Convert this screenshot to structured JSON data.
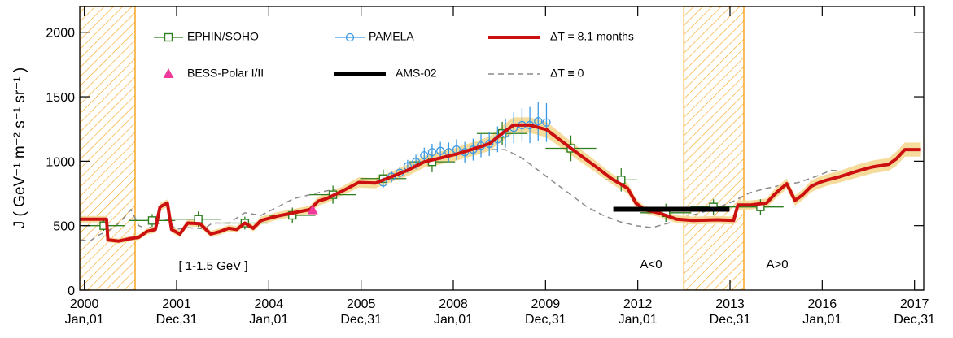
{
  "chart_data": {
    "type": "line",
    "ylabel": "J ( GeV⁻¹ m⁻² s⁻¹ sr⁻¹ )",
    "xlim": [
      1999.9,
      2018.2
    ],
    "ylim": [
      0,
      2200
    ],
    "xticks": [
      {
        "value": 2000,
        "label": [
          "2000",
          "Jan,01"
        ]
      },
      {
        "value": 2002,
        "label": [
          "2001",
          "Dec,31"
        ]
      },
      {
        "value": 2004,
        "label": [
          "2004",
          "Jan,01"
        ]
      },
      {
        "value": 2006,
        "label": [
          "2005",
          "Dec,31"
        ]
      },
      {
        "value": 2008,
        "label": [
          "2008",
          "Jan,01"
        ]
      },
      {
        "value": 2010,
        "label": [
          "2009",
          "Dec,31"
        ]
      },
      {
        "value": 2012,
        "label": [
          "2012",
          "Jan,01"
        ]
      },
      {
        "value": 2014,
        "label": [
          "2013",
          "Dec,31"
        ]
      },
      {
        "value": 2016,
        "label": [
          "2016",
          "Jan,01"
        ]
      },
      {
        "value": 2018,
        "label": [
          "2017",
          "Dec,31"
        ]
      }
    ],
    "yticks": [
      0,
      500,
      1000,
      1500,
      2000
    ],
    "shaded_regions": [
      [
        1999.9,
        2001.1
      ],
      [
        2013.0,
        2014.3
      ]
    ],
    "shaded_color": "#f7a623",
    "annotations": [
      "[ 1-1.5 GeV ]",
      "A<0",
      "A>0"
    ],
    "series": [
      {
        "name": "EPHIN/SOHO",
        "color": "#2e7d1e",
        "kind": "points",
        "marker": "square",
        "x": [
          2000.42,
          2001.47,
          2002.47,
          2003.48,
          2004.51,
          2005.39,
          2006.48,
          2007.54,
          2009.06,
          2010.55,
          2011.64,
          2012.61,
          2013.64,
          2014.66
        ],
        "values": [
          500,
          540,
          550,
          520,
          580,
          740,
          865,
          995,
          1215,
          1100,
          855,
          600,
          645,
          645
        ],
        "errors": [
          40,
          50,
          60,
          50,
          60,
          70,
          70,
          80,
          90,
          100,
          90,
          70,
          60,
          60
        ],
        "xerrors": [
          0.45,
          0.5,
          0.5,
          0.5,
          0.5,
          0.5,
          0.5,
          0.5,
          0.55,
          0.55,
          0.35,
          0.55,
          0.5,
          0.5
        ]
      },
      {
        "name": "PAMELA",
        "color": "#3a9ae6",
        "kind": "points",
        "marker": "circle",
        "x": [
          2006.48,
          2006.66,
          2006.84,
          2007.01,
          2007.19,
          2007.37,
          2007.54,
          2007.72,
          2007.9,
          2008.07,
          2008.25,
          2008.43,
          2008.6,
          2008.78,
          2008.96,
          2009.13,
          2009.31,
          2009.49,
          2009.66,
          2009.84,
          2010.02
        ],
        "values": [
          835,
          880,
          910,
          960,
          995,
          1045,
          1070,
          1080,
          1070,
          1090,
          1070,
          1090,
          1120,
          1135,
          1170,
          1215,
          1260,
          1280,
          1280,
          1310,
          1300
        ],
        "errors": [
          40,
          45,
          45,
          50,
          55,
          60,
          65,
          70,
          75,
          80,
          80,
          85,
          90,
          95,
          100,
          110,
          120,
          130,
          140,
          150,
          150
        ]
      },
      {
        "name": "ΔT = 8.1 months",
        "color": "#cc1010",
        "band_color": "#f6dc9c",
        "kind": "line",
        "x": [
          1999.91,
          2000.48,
          2000.51,
          2000.74,
          2001.01,
          2001.18,
          2001.36,
          2001.54,
          2001.64,
          2001.8,
          2001.89,
          2002.07,
          2002.24,
          2002.51,
          2002.74,
          2002.95,
          2003.13,
          2003.3,
          2003.48,
          2003.66,
          2003.83,
          2004.19,
          2004.54,
          2004.89,
          2005.07,
          2005.25,
          2005.6,
          2005.95,
          2006.31,
          2006.66,
          2007.01,
          2007.37,
          2007.72,
          2008.07,
          2008.43,
          2008.78,
          2009.13,
          2009.31,
          2009.66,
          2010.02,
          2010.37,
          2010.72,
          2011.08,
          2011.43,
          2011.78,
          2011.96,
          2012.14,
          2012.49,
          2012.84,
          2013.2,
          2013.73,
          2014.08,
          2014.17,
          2014.43,
          2014.79,
          2014.96,
          2015.05,
          2015.23,
          2015.41,
          2015.58,
          2015.76,
          2015.94,
          2016.11,
          2016.38,
          2016.73,
          2017.08,
          2017.44,
          2017.61,
          2017.79,
          2018.14
        ],
        "values": [
          550,
          550,
          390,
          380,
          400,
          410,
          455,
          470,
          645,
          675,
          470,
          435,
          520,
          515,
          435,
          455,
          480,
          470,
          520,
          480,
          540,
          575,
          600,
          625,
          690,
          710,
          770,
          835,
          830,
          880,
          930,
          995,
          1025,
          1055,
          1095,
          1135,
          1235,
          1280,
          1280,
          1245,
          1150,
          1055,
          960,
          865,
          790,
          675,
          625,
          595,
          550,
          540,
          545,
          540,
          660,
          660,
          675,
          740,
          770,
          825,
          695,
          740,
          805,
          835,
          855,
          880,
          920,
          955,
          975,
          1020,
          1090,
          1090
        ],
        "errors": [
          25,
          25,
          20,
          20,
          20,
          20,
          25,
          25,
          30,
          30,
          25,
          25,
          25,
          25,
          25,
          25,
          25,
          25,
          25,
          25,
          30,
          30,
          30,
          30,
          35,
          35,
          35,
          40,
          40,
          40,
          45,
          45,
          50,
          50,
          55,
          55,
          60,
          60,
          60,
          60,
          55,
          50,
          45,
          40,
          40,
          35,
          30,
          30,
          30,
          30,
          30,
          30,
          35,
          35,
          35,
          40,
          40,
          40,
          40,
          40,
          45,
          45,
          45,
          45,
          50,
          50,
          50,
          55,
          55,
          55
        ]
      },
      {
        "name": "BESS-Polar I/II",
        "color": "#f0399a",
        "kind": "points",
        "marker": "triangle",
        "x": [
          2004.95
        ],
        "values": [
          620
        ]
      },
      {
        "name": "AMS-02",
        "color": "#000000",
        "kind": "segment",
        "x": [
          2011.47,
          2013.99
        ],
        "values": [
          627,
          627
        ]
      },
      {
        "name": "ΔT ≡ 0",
        "color": "#8a8a8a",
        "kind": "dashed",
        "x": [
          1999.91,
          2000.12,
          2000.3,
          2000.65,
          2000.83,
          2001.01,
          2001.18,
          2001.36,
          2001.63,
          2001.8,
          2001.98,
          2002.24,
          2002.6,
          2002.77,
          2003.13,
          2003.48,
          2003.83,
          2004.19,
          2004.54,
          2004.89,
          2005.25,
          2005.6,
          2005.95,
          2006.31,
          2006.66,
          2007.01,
          2007.37,
          2007.72,
          2008.07,
          2008.43,
          2008.78,
          2009.13,
          2009.49,
          2009.84,
          2010.19,
          2010.55,
          2010.9,
          2011.25,
          2011.61,
          2011.96,
          2012.31,
          2012.67,
          2013.02,
          2013.37,
          2013.73,
          2014.08,
          2014.43,
          2014.79,
          2015.14,
          2015.49,
          2015.85,
          2016.2,
          2016.55,
          2016.91,
          2017.26,
          2017.61,
          2017.97
        ],
        "values": [
          390,
          380,
          425,
          485,
          550,
          625,
          500,
          475,
          520,
          550,
          470,
          485,
          475,
          520,
          520,
          600,
          580,
          645,
          710,
          740,
          770,
          790,
          855,
          855,
          900,
          930,
          995,
          1005,
          1055,
          1095,
          1090,
          1090,
          1025,
          930,
          835,
          740,
          645,
          580,
          530,
          500,
          485,
          520,
          565,
          600,
          640,
          690,
          755,
          790,
          815,
          835,
          880,
          930,
          920,
          970,
          995,
          1025,
          1075
        ]
      }
    ]
  }
}
